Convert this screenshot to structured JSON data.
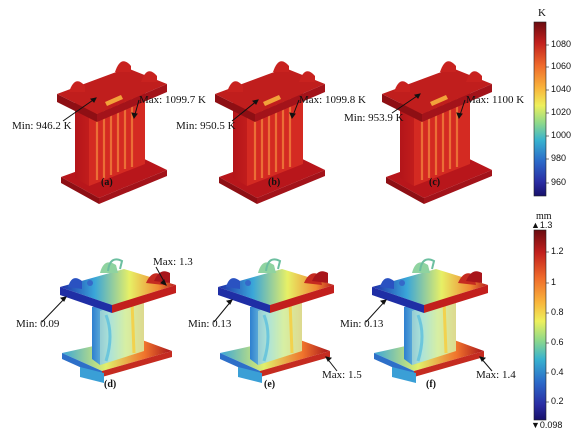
{
  "temperature": {
    "unit": "K",
    "colorbar_ticks": [
      "1080",
      "1060",
      "1040",
      "1020",
      "1000",
      "980",
      "960"
    ],
    "colorbar_colors": [
      "#7a0c12",
      "#c2201d",
      "#e8532a",
      "#f7a33c",
      "#f6e35b",
      "#b7e06c",
      "#69c9a3",
      "#2fa7d6",
      "#2b64c7",
      "#2c2ca6",
      "#1b1477"
    ],
    "panels": [
      {
        "label": "(a)",
        "min": "Min: 946.2 K",
        "max": "Max: 1099.7 K"
      },
      {
        "label": "(b)",
        "min": "Min: 950.5 K",
        "max": "Max: 1099.8 K"
      },
      {
        "label": "(c)",
        "min": "Min: 953.9 K",
        "max": "Max: 1100 K"
      }
    ]
  },
  "deformation": {
    "unit": "mm",
    "colorbar_max": "▲1.3",
    "colorbar_min": "▼0.098",
    "colorbar_ticks": [
      "1.2",
      "1",
      "0.8",
      "0.6",
      "0.4",
      "0.2"
    ],
    "colorbar_colors": [
      "#7a0c12",
      "#c2201d",
      "#e8532a",
      "#f7a33c",
      "#f6e35b",
      "#b7e06c",
      "#69c9a3",
      "#2fa7d6",
      "#2b64c7",
      "#2c2ca6",
      "#1b1477"
    ],
    "panels": [
      {
        "label": "(d)",
        "min": "Min: 0.09",
        "max": "Max: 1.3"
      },
      {
        "label": "(e)",
        "min": "Min: 0.13",
        "max": "Max: 1.5"
      },
      {
        "label": "(f)",
        "min": "Min: 0.13",
        "max": "Max: 1.4"
      }
    ]
  }
}
